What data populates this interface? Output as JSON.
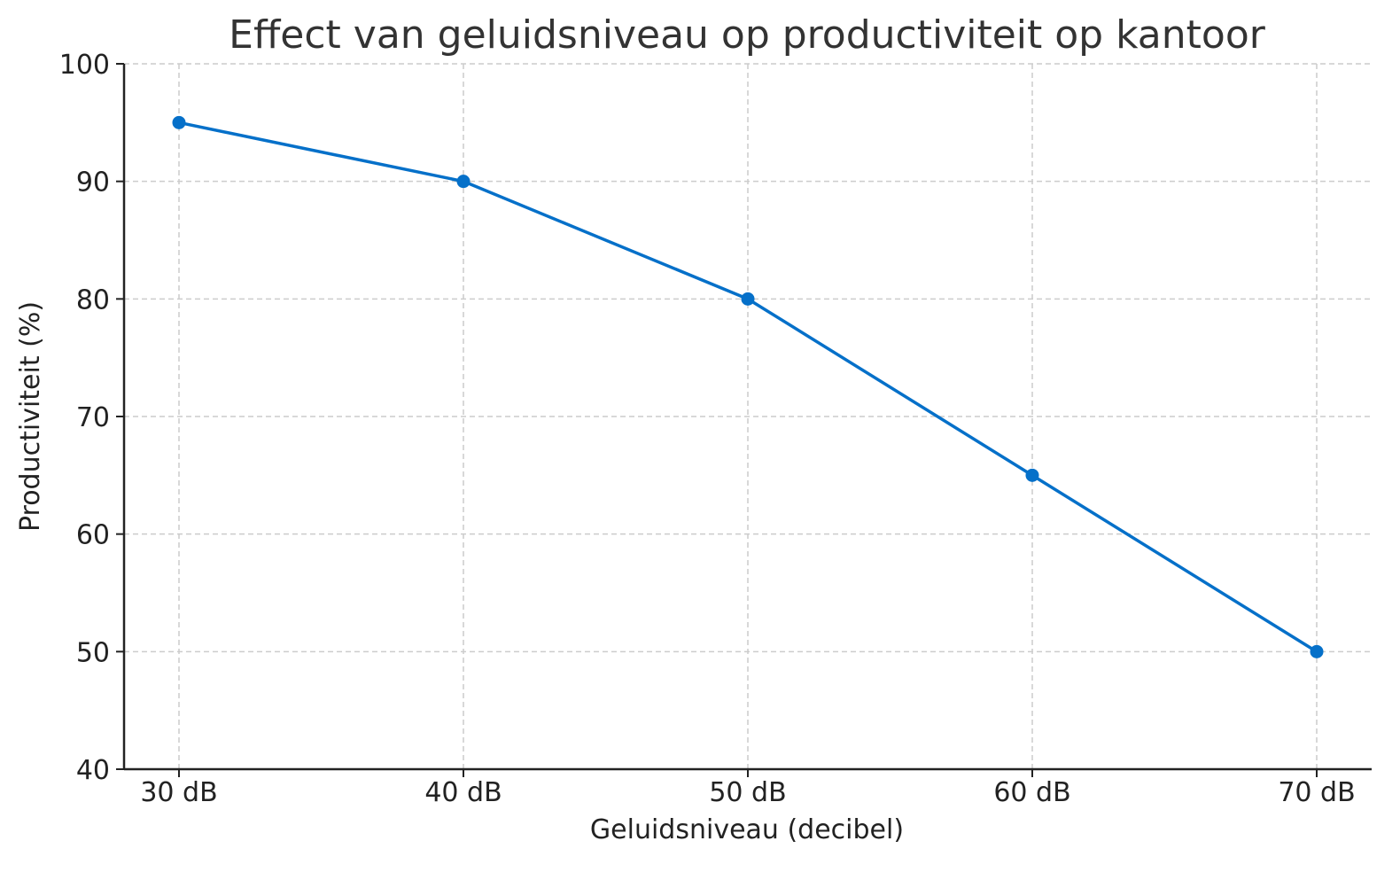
{
  "chart_data": {
    "type": "line",
    "title": "Effect van geluidsniveau op productiviteit op kantoor",
    "xlabel": "Geluidsniveau (decibel)",
    "ylabel": "Productiviteit (%)",
    "categories": [
      "30 dB",
      "40 dB",
      "50 dB",
      "60 dB",
      "70 dB"
    ],
    "series": [
      {
        "values": [
          95,
          90,
          80,
          65,
          50
        ],
        "color": "#0570c9"
      }
    ],
    "ylim": [
      40,
      100
    ],
    "yticks": [
      40,
      50,
      60,
      70,
      80,
      90,
      100
    ],
    "grid": true,
    "grid_style": "dashed",
    "marker": "circle"
  }
}
